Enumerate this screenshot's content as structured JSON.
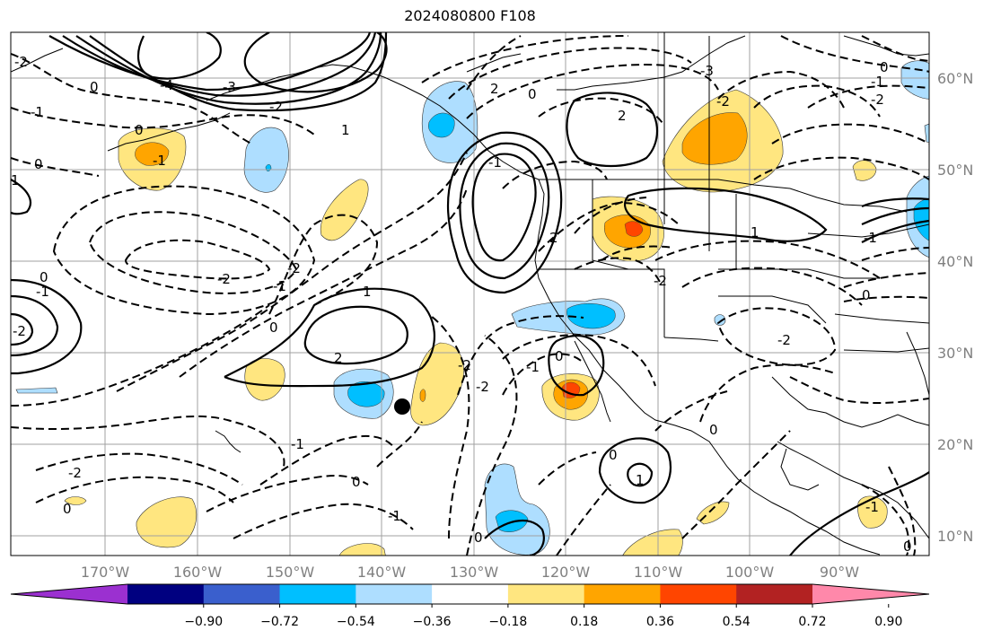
{
  "title": "2024080800 F108",
  "lon_labels": [
    "170°W",
    "160°W",
    "150°W",
    "140°W",
    "130°W",
    "120°W",
    "110°W",
    "100°W",
    "90°W"
  ],
  "lat_labels": [
    "60°N",
    "50°N",
    "40°N",
    "30°N",
    "20°N",
    "10°N"
  ],
  "colorbar": {
    "colors": [
      "#9b30d0",
      "#000080",
      "#3a5fcd",
      "#00bfff",
      "#aedeff",
      "#ffffff",
      "#ffe680",
      "#ffa500",
      "#ff4500",
      "#b22222",
      "#ff88aa"
    ],
    "labels": [
      "−0.90",
      "−0.72",
      "−0.54",
      "−0.36",
      "−0.18",
      "0.18",
      "0.36",
      "0.54",
      "0.72",
      "0.90"
    ]
  },
  "contour_labels": [
    {
      "text": "-2"
    },
    {
      "text": "-1"
    },
    {
      "text": "0"
    },
    {
      "text": "-4"
    },
    {
      "text": "-3"
    },
    {
      "text": "-2"
    },
    {
      "text": "0"
    },
    {
      "text": "-1"
    },
    {
      "text": "1"
    },
    {
      "text": "-2"
    },
    {
      "text": "-1"
    },
    {
      "text": "-2"
    },
    {
      "text": "0"
    },
    {
      "text": "1"
    },
    {
      "text": "2"
    },
    {
      "text": "-2"
    },
    {
      "text": "-2"
    },
    {
      "text": "-1"
    },
    {
      "text": "0"
    },
    {
      "text": "2"
    },
    {
      "text": "2"
    },
    {
      "text": "-3"
    },
    {
      "text": "-2"
    },
    {
      "text": "2"
    },
    {
      "text": "1"
    },
    {
      "text": "0"
    },
    {
      "text": "-1"
    },
    {
      "text": "-2"
    },
    {
      "text": "-2"
    },
    {
      "text": "0"
    },
    {
      "text": "-1"
    },
    {
      "text": "0"
    },
    {
      "text": "-2"
    },
    {
      "text": "0"
    },
    {
      "text": "-1"
    },
    {
      "text": "-2"
    },
    {
      "text": "-1"
    },
    {
      "text": "0"
    },
    {
      "text": "-1"
    },
    {
      "text": "0"
    },
    {
      "text": "0"
    },
    {
      "text": "1"
    },
    {
      "text": "-1"
    },
    {
      "text": "0"
    },
    {
      "text": "1"
    },
    {
      "text": "-2"
    },
    {
      "text": "-1"
    },
    {
      "text": "0"
    },
    {
      "text": "0"
    },
    {
      "text": "0"
    }
  ],
  "marker": {
    "label": "storm-center-dot"
  }
}
